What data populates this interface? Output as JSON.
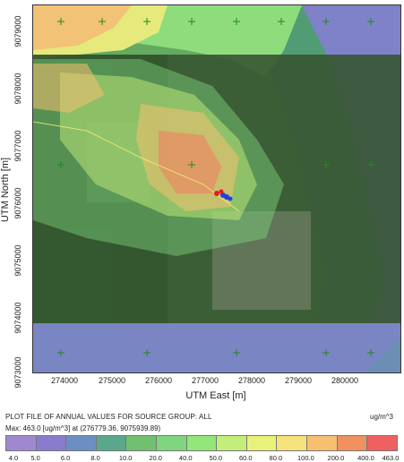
{
  "map": {
    "x_axis_label": "UTM East [m]",
    "y_axis_label": "UTM North [m]",
    "x_ticks": [
      "274000",
      "275000",
      "276000",
      "277000",
      "278000",
      "279000",
      "280000"
    ],
    "y_ticks": [
      "9079000",
      "9078000",
      "9077000",
      "9076000",
      "9075000",
      "9074000",
      "9073000"
    ]
  },
  "footer": {
    "title": "PLOT FILE OF ANNUAL VALUES FOR SOURCE GROUP: ALL",
    "units": "ug/m^3",
    "max_line": "Max:  463.0  [ug/m^3]  at  (276779.36, 9075939.89)"
  },
  "legend": {
    "levels": [
      "4.0",
      "5.0",
      "6.0",
      "8.0",
      "10.0",
      "20.0",
      "40.0",
      "50.0",
      "60.0",
      "80.0",
      "100.0",
      "200.0",
      "400.0",
      "463.0"
    ],
    "colors": [
      "#9f88d0",
      "#8a7ccc",
      "#6b8fc2",
      "#5aa88c",
      "#70c070",
      "#7fd67f",
      "#92e67a",
      "#c4ee7a",
      "#e8f27a",
      "#f6e27a",
      "#f6c070",
      "#f19060",
      "#ef6060"
    ]
  }
}
